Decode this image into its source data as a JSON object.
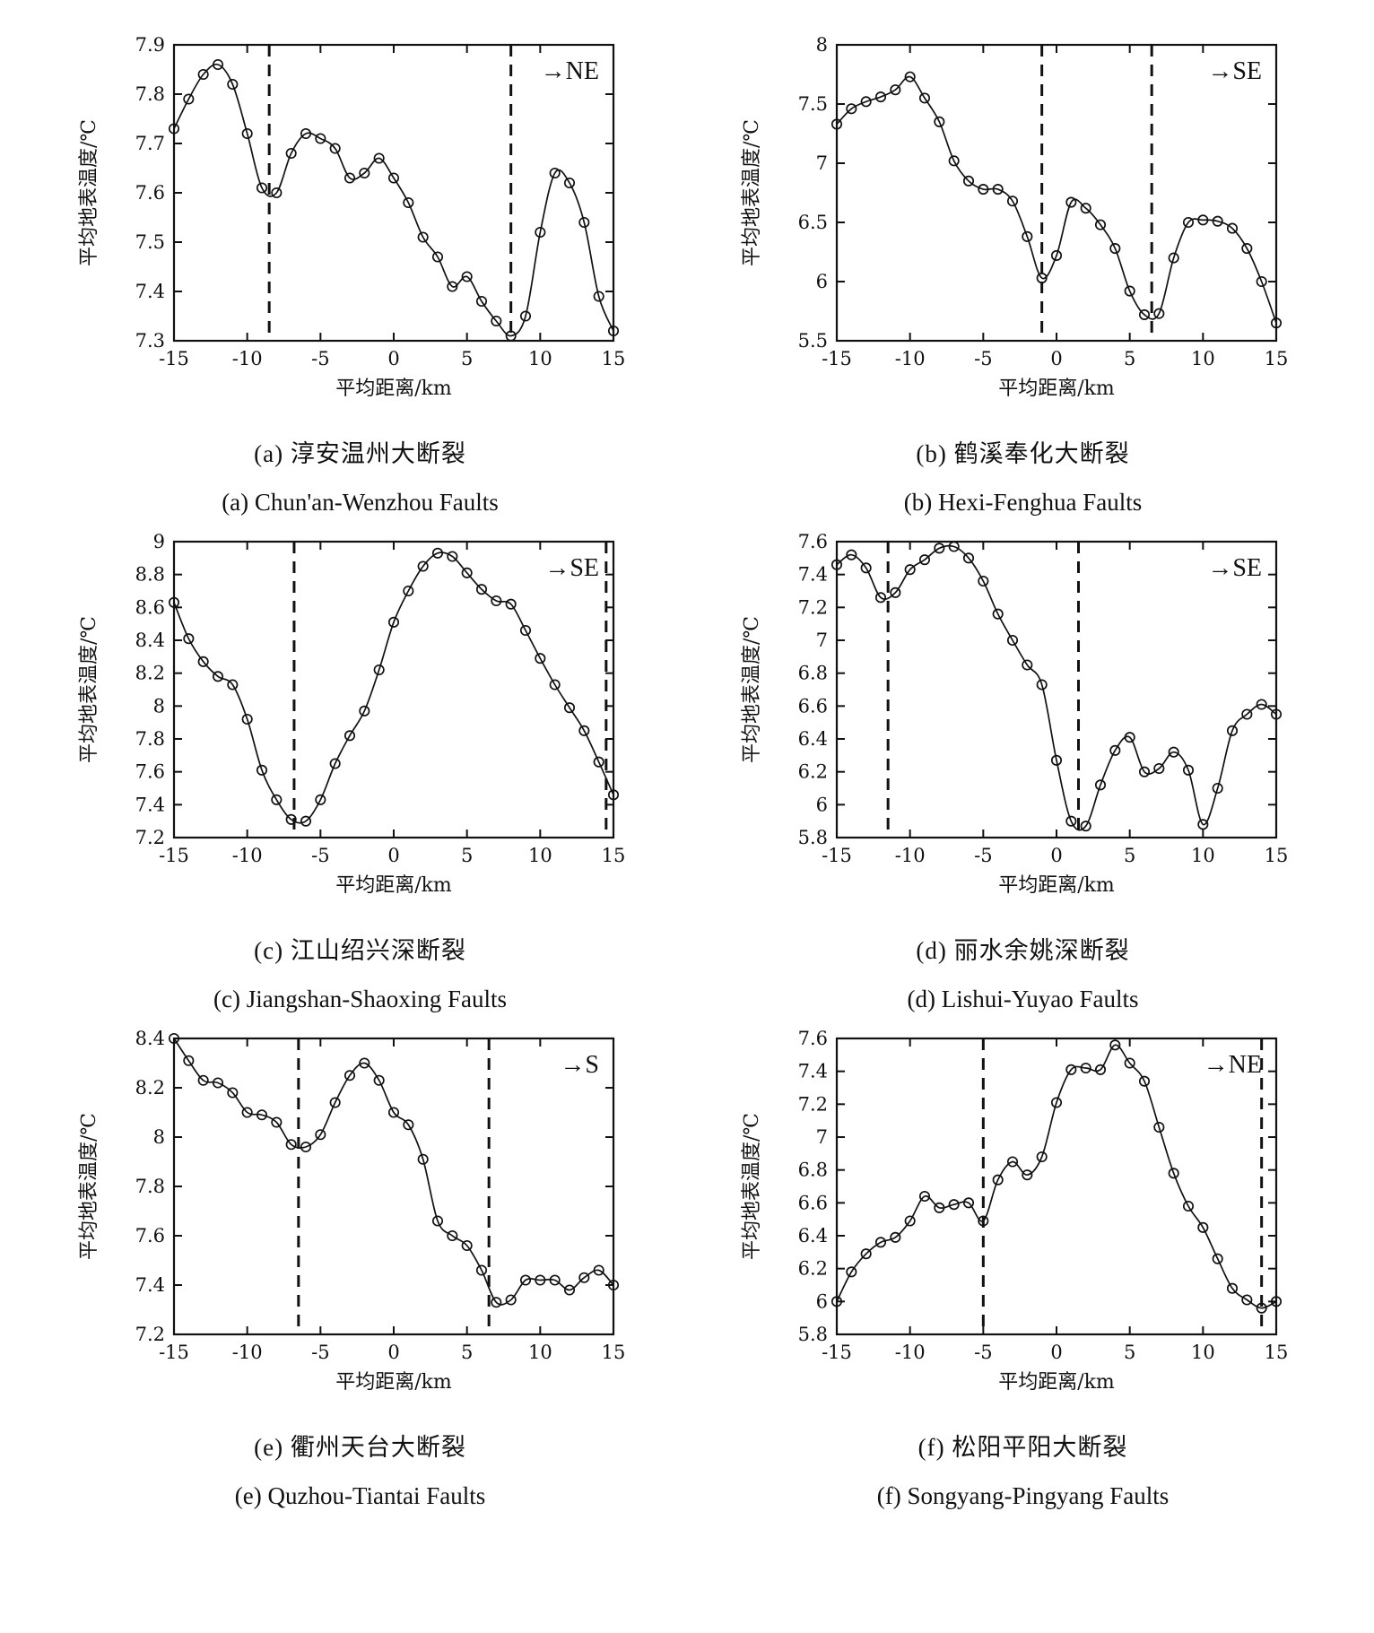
{
  "figure": {
    "xlabel": "平均距离/km",
    "ylabel": "平均地表温度/℃"
  },
  "chart_data": [
    {
      "type": "line",
      "id": "a",
      "caption_zh": "(a) 淳安温州大断裂",
      "caption_en": "(a) Chun'an-Wenzhou Faults",
      "direction_label": "→NE",
      "xlabel": "平均距离/km",
      "ylabel": "平均地表温度/℃",
      "xlim": [
        -15,
        15
      ],
      "xticks": [
        "-15",
        "-10",
        "-5",
        "0",
        "5",
        "10",
        "15"
      ],
      "ylim": [
        7.3,
        7.9
      ],
      "yticks": [
        "7.3",
        "7.4",
        "7.5",
        "7.6",
        "7.7",
        "7.8",
        "7.9"
      ],
      "fault_lines": [
        -8.5,
        8
      ],
      "grid": false,
      "x": [
        -15,
        -14,
        -13,
        -12,
        -11,
        -10,
        -9,
        -8,
        -7,
        -6,
        -5,
        -4,
        -3,
        -2,
        -1,
        0,
        1,
        2,
        3,
        4,
        5,
        6,
        7,
        8,
        9,
        10,
        11,
        12,
        13,
        14,
        15
      ],
      "y": [
        7.73,
        7.79,
        7.84,
        7.86,
        7.82,
        7.72,
        7.61,
        7.6,
        7.68,
        7.72,
        7.71,
        7.69,
        7.63,
        7.64,
        7.67,
        7.63,
        7.58,
        7.51,
        7.47,
        7.41,
        7.43,
        7.38,
        7.34,
        7.31,
        7.35,
        7.52,
        7.64,
        7.62,
        7.54,
        7.39,
        7.32
      ]
    },
    {
      "type": "line",
      "id": "b",
      "caption_zh": "(b) 鹤溪奉化大断裂",
      "caption_en": "(b) Hexi-Fenghua Faults",
      "direction_label": "→SE",
      "xlabel": "平均距离/km",
      "ylabel": "平均地表温度/℃",
      "xlim": [
        -15,
        15
      ],
      "xticks": [
        "-15",
        "-10",
        "-5",
        "0",
        "5",
        "10",
        "15"
      ],
      "ylim": [
        5.5,
        8
      ],
      "yticks": [
        "5.5",
        "6",
        "6.5",
        "7",
        "7.5",
        "8"
      ],
      "fault_lines": [
        -1,
        6.5
      ],
      "grid": false,
      "x": [
        -15,
        -14,
        -13,
        -12,
        -11,
        -10,
        -9,
        -8,
        -7,
        -6,
        -5,
        -4,
        -3,
        -2,
        -1,
        0,
        1,
        2,
        3,
        4,
        5,
        6,
        7,
        8,
        9,
        10,
        11,
        12,
        13,
        14,
        15
      ],
      "y": [
        7.33,
        7.46,
        7.52,
        7.56,
        7.62,
        7.73,
        7.55,
        7.35,
        7.02,
        6.85,
        6.78,
        6.78,
        6.68,
        6.38,
        6.03,
        6.22,
        6.67,
        6.62,
        6.48,
        6.28,
        5.92,
        5.72,
        5.73,
        6.2,
        6.5,
        6.52,
        6.51,
        6.45,
        6.28,
        6.0,
        5.65
      ]
    },
    {
      "type": "line",
      "id": "c",
      "caption_zh": "(c) 江山绍兴深断裂",
      "caption_en": "(c) Jiangshan-Shaoxing Faults",
      "direction_label": "→SE",
      "xlabel": "平均距离/km",
      "ylabel": "平均地表温度/℃",
      "xlim": [
        -15,
        15
      ],
      "xticks": [
        "-15",
        "-10",
        "-5",
        "0",
        "5",
        "10",
        "15"
      ],
      "ylim": [
        7.2,
        9
      ],
      "yticks": [
        "7.2",
        "7.4",
        "7.6",
        "7.8",
        "8",
        "8.2",
        "8.4",
        "8.6",
        "8.8",
        "9"
      ],
      "fault_lines": [
        -6.8,
        14.5
      ],
      "grid": false,
      "x": [
        -15,
        -14,
        -13,
        -12,
        -11,
        -10,
        -9,
        -8,
        -7,
        -6,
        -5,
        -4,
        -3,
        -2,
        -1,
        0,
        1,
        2,
        3,
        4,
        5,
        6,
        7,
        8,
        9,
        10,
        11,
        12,
        13,
        14,
        15
      ],
      "y": [
        8.63,
        8.41,
        8.27,
        8.18,
        8.13,
        7.92,
        7.61,
        7.43,
        7.31,
        7.3,
        7.43,
        7.65,
        7.82,
        7.97,
        8.22,
        8.51,
        8.7,
        8.85,
        8.93,
        8.91,
        8.81,
        8.71,
        8.64,
        8.62,
        8.46,
        8.29,
        8.13,
        7.99,
        7.85,
        7.66,
        7.46
      ]
    },
    {
      "type": "line",
      "id": "d",
      "caption_zh": "(d) 丽水余姚深断裂",
      "caption_en": "(d) Lishui-Yuyao Faults",
      "direction_label": "→SE",
      "xlabel": "平均距离/km",
      "ylabel": "平均地表温度/℃",
      "xlim": [
        -15,
        15
      ],
      "xticks": [
        "-15",
        "-10",
        "-5",
        "0",
        "5",
        "10",
        "15"
      ],
      "ylim": [
        5.8,
        7.6
      ],
      "yticks": [
        "5.8",
        "6",
        "6.2",
        "6.4",
        "6.6",
        "6.8",
        "7",
        "7.2",
        "7.4",
        "7.6"
      ],
      "fault_lines": [
        -11.5,
        1.5
      ],
      "grid": false,
      "x": [
        -15,
        -14,
        -13,
        -12,
        -11,
        -10,
        -9,
        -8,
        -7,
        -6,
        -5,
        -4,
        -3,
        -2,
        -1,
        0,
        1,
        2,
        3,
        4,
        5,
        6,
        7,
        8,
        9,
        10,
        11,
        12,
        13,
        14,
        15
      ],
      "y": [
        7.46,
        7.52,
        7.44,
        7.26,
        7.29,
        7.43,
        7.49,
        7.56,
        7.57,
        7.5,
        7.36,
        7.16,
        7.0,
        6.85,
        6.73,
        6.27,
        5.9,
        5.87,
        6.12,
        6.33,
        6.41,
        6.2,
        6.22,
        6.32,
        6.21,
        5.88,
        6.1,
        6.45,
        6.55,
        6.61,
        6.55
      ]
    },
    {
      "type": "line",
      "id": "e",
      "caption_zh": "(e) 衢州天台大断裂",
      "caption_en": "(e) Quzhou-Tiantai Faults",
      "direction_label": "→S",
      "xlabel": "平均距离/km",
      "ylabel": "平均地表温度/℃",
      "xlim": [
        -15,
        15
      ],
      "xticks": [
        "-15",
        "-10",
        "-5",
        "0",
        "5",
        "10",
        "15"
      ],
      "ylim": [
        7.2,
        8.4
      ],
      "yticks": [
        "7.2",
        "7.4",
        "7.6",
        "7.8",
        "8",
        "8.2",
        "8.4"
      ],
      "fault_lines": [
        -6.5,
        6.5
      ],
      "grid": false,
      "x": [
        -15,
        -14,
        -13,
        -12,
        -11,
        -10,
        -9,
        -8,
        -7,
        -6,
        -5,
        -4,
        -3,
        -2,
        -1,
        0,
        1,
        2,
        3,
        4,
        5,
        6,
        7,
        8,
        9,
        10,
        11,
        12,
        13,
        14,
        15
      ],
      "y": [
        8.4,
        8.31,
        8.23,
        8.22,
        8.18,
        8.1,
        8.09,
        8.06,
        7.97,
        7.96,
        8.01,
        8.14,
        8.25,
        8.3,
        8.23,
        8.1,
        8.05,
        7.91,
        7.66,
        7.6,
        7.56,
        7.46,
        7.33,
        7.34,
        7.42,
        7.42,
        7.42,
        7.38,
        7.43,
        7.46,
        7.4
      ]
    },
    {
      "type": "line",
      "id": "f",
      "caption_zh": "(f) 松阳平阳大断裂",
      "caption_en": "(f) Songyang-Pingyang Faults",
      "direction_label": "→NE",
      "xlabel": "平均距离/km",
      "ylabel": "平均地表温度/℃",
      "xlim": [
        -15,
        15
      ],
      "xticks": [
        "-15",
        "-10",
        "-5",
        "0",
        "5",
        "10",
        "15"
      ],
      "ylim": [
        5.8,
        7.6
      ],
      "yticks": [
        "5.8",
        "6",
        "6.2",
        "6.4",
        "6.6",
        "6.8",
        "7",
        "7.2",
        "7.4",
        "7.6"
      ],
      "fault_lines": [
        -5,
        14
      ],
      "grid": false,
      "x": [
        -15,
        -14,
        -13,
        -12,
        -11,
        -10,
        -9,
        -8,
        -7,
        -6,
        -5,
        -4,
        -3,
        -2,
        -1,
        0,
        1,
        2,
        3,
        4,
        5,
        6,
        7,
        8,
        9,
        10,
        11,
        12,
        13,
        14,
        15
      ],
      "y": [
        6.0,
        6.18,
        6.29,
        6.36,
        6.39,
        6.49,
        6.64,
        6.57,
        6.59,
        6.6,
        6.49,
        6.74,
        6.85,
        6.77,
        6.88,
        7.21,
        7.41,
        7.42,
        7.41,
        7.56,
        7.45,
        7.34,
        7.06,
        6.78,
        6.58,
        6.45,
        6.26,
        6.08,
        6.01,
        5.96,
        6.0
      ]
    }
  ],
  "style": {
    "line_color": "#111111",
    "marker_color": "#111111",
    "fault_line_color": "#111111",
    "background": "#ffffff"
  }
}
